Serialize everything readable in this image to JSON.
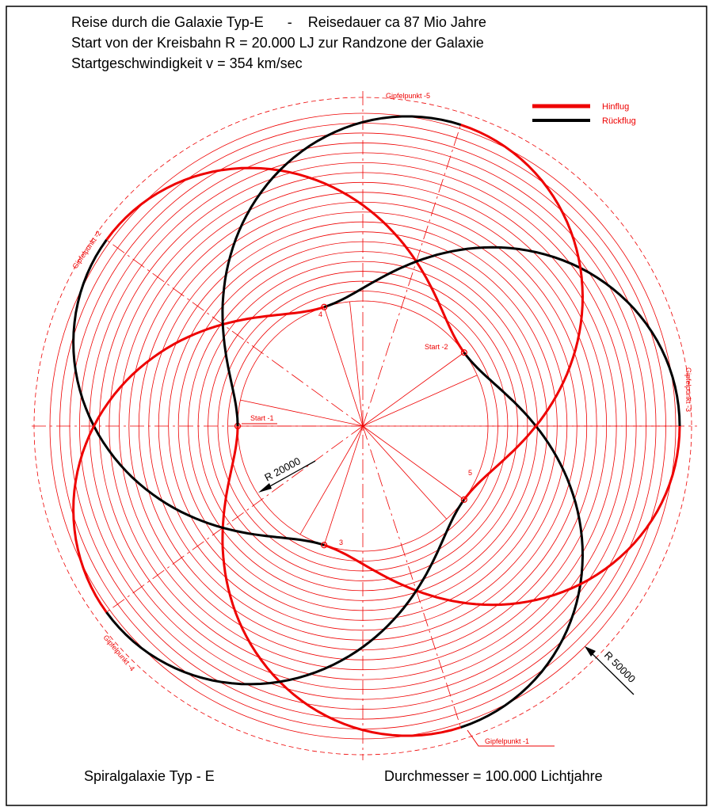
{
  "title_lines": [
    "Reise durch die Galaxie Typ-E      -    Reisedauer ca 87 Mio Jahre",
    "Start von der Kreisbahn R = 20.000 LJ  zur Randzone der Galaxie",
    "Startgeschwindigkeit  v = 354 km/sec"
  ],
  "legend": {
    "outbound": "Hinflug",
    "return": "Rückflug"
  },
  "apex_labels": {
    "p1": "Gipfelpunkt -1",
    "p2": "Gipfelpunkt -2",
    "p3": "Gipfelpunkt -3",
    "p4": "Gipfelpunkt -4",
    "p5": "Gipfelpunkt -5"
  },
  "start_labels": {
    "s1": "Start -1",
    "s2": "Start -2",
    "s3": "3",
    "s4": "4",
    "s5": "5"
  },
  "radius_labels": {
    "inner": "R 20000",
    "outer": "R 50000"
  },
  "footer": {
    "left": "Spiralgalaxie  Typ - E",
    "right": "Durchmesser = 100.000  Lichtjahre"
  }
}
